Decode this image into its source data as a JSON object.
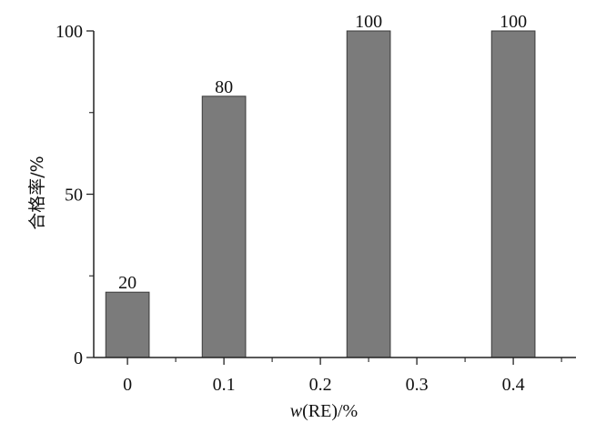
{
  "chart_data": {
    "type": "bar",
    "x": [
      0,
      0.1,
      0.25,
      0.4
    ],
    "values": [
      20,
      80,
      100,
      100
    ],
    "data_labels": [
      "20",
      "80",
      "100",
      "100"
    ],
    "bar_width": 0.045,
    "bar_color": "#7b7b7b",
    "bar_edge_color": "#3a3a3a",
    "ylabel": "合格率/%",
    "xlabel": "w(RE)/%",
    "xlabel_parts": {
      "italic": "w",
      "rest": "(RE)/%"
    },
    "xlim": [
      -0.035,
      0.465
    ],
    "ylim": [
      0,
      100
    ],
    "x_ticks": [
      0,
      0.1,
      0.2,
      0.3,
      0.4
    ],
    "x_tick_labels": [
      "0",
      "0.1",
      "0.2",
      "0.3",
      "0.4"
    ],
    "x_minor_ticks": [
      -0.05,
      0.05,
      0.15,
      0.25,
      0.35,
      0.45
    ],
    "y_ticks": [
      0,
      50,
      100
    ],
    "y_tick_labels": [
      "0",
      "50",
      "100"
    ],
    "y_minor_ticks": [
      25,
      75
    ],
    "grid": false,
    "legend": "none"
  }
}
